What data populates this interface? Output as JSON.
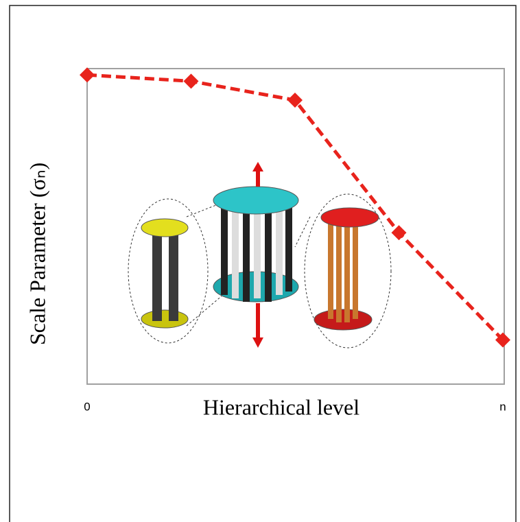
{
  "chart_data": {
    "type": "line",
    "xlabel": "Hierarchical level",
    "ylabel": "Scale Parameter (σₙ)",
    "categories": [
      "0",
      null,
      null,
      null,
      "n"
    ],
    "values": [
      98,
      96,
      90,
      48,
      14
    ],
    "color": "#e8231c",
    "ylim": [
      0,
      100
    ]
  }
}
